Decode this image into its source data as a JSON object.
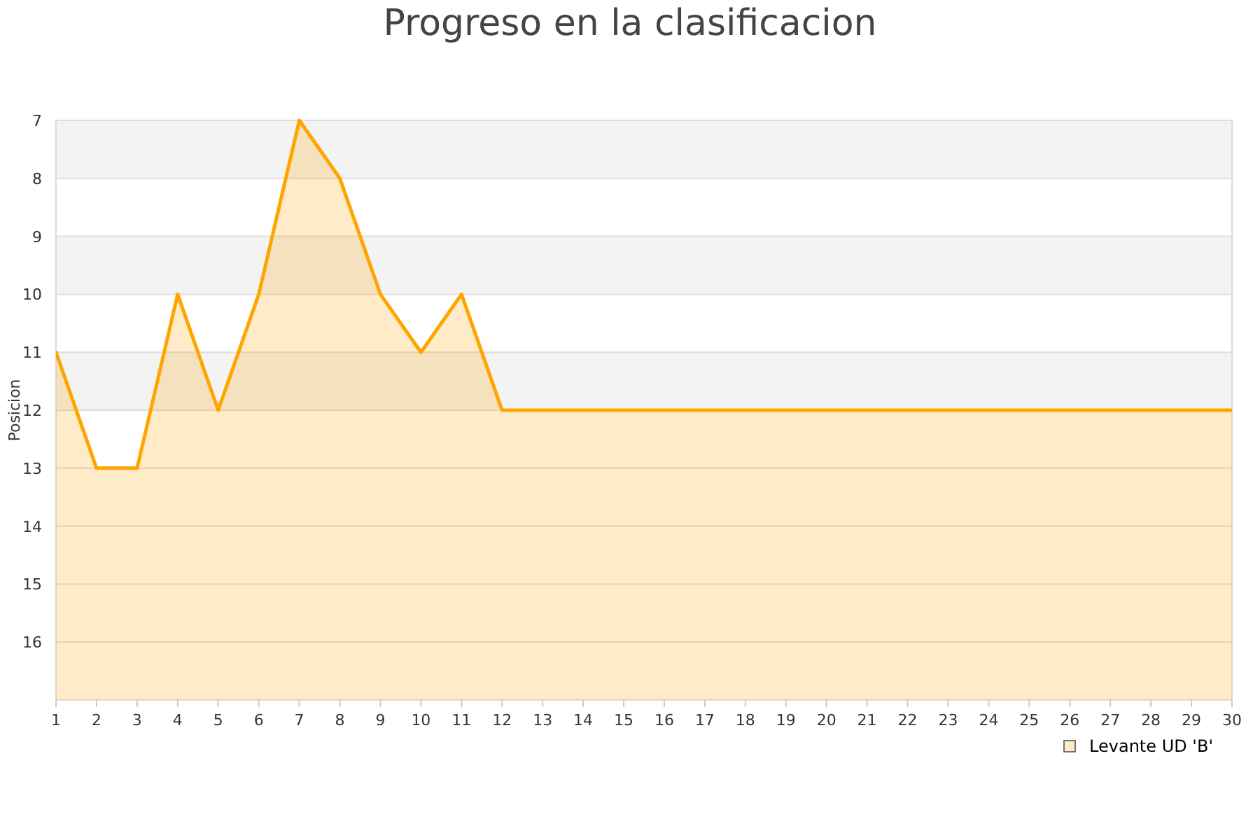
{
  "chart_data": {
    "type": "area",
    "title": "Progreso en la clasificacion",
    "ylabel": "Posicion",
    "x": [
      1,
      2,
      3,
      4,
      5,
      6,
      7,
      8,
      9,
      10,
      11,
      12,
      13,
      14,
      15,
      16,
      17,
      18,
      19,
      20,
      21,
      22,
      23,
      24,
      25,
      26,
      27,
      28,
      29,
      30
    ],
    "series": [
      {
        "name": "Levante UD 'B'",
        "color": "#ffa500",
        "values": [
          11,
          13,
          13,
          10,
          12,
          10,
          7,
          8,
          10,
          11,
          10,
          12,
          12,
          12,
          12,
          12,
          12,
          12,
          12,
          12,
          12,
          12,
          12,
          12,
          12,
          12,
          12,
          12,
          12,
          12
        ]
      }
    ],
    "xlim": [
      1,
      30
    ],
    "xticks": [
      1,
      2,
      3,
      4,
      5,
      6,
      7,
      8,
      9,
      10,
      11,
      12,
      13,
      14,
      15,
      16,
      17,
      18,
      19,
      20,
      21,
      22,
      23,
      24,
      25,
      26,
      27,
      28,
      29,
      30
    ],
    "ylim": [
      17,
      7
    ],
    "yticks": [
      7,
      8,
      9,
      10,
      11,
      12,
      13,
      14,
      15,
      16
    ],
    "bands": [
      {
        "axis": "y",
        "from": 7,
        "to": 8,
        "color": "#f3f3f3"
      },
      {
        "axis": "y",
        "from": 9,
        "to": 10,
        "color": "#f3f3f3"
      },
      {
        "axis": "y",
        "from": 11,
        "to": 12,
        "color": "#f3f3f3"
      }
    ],
    "grid": "y",
    "legend": "bottom right",
    "marker": "none",
    "line_style": "solid"
  }
}
